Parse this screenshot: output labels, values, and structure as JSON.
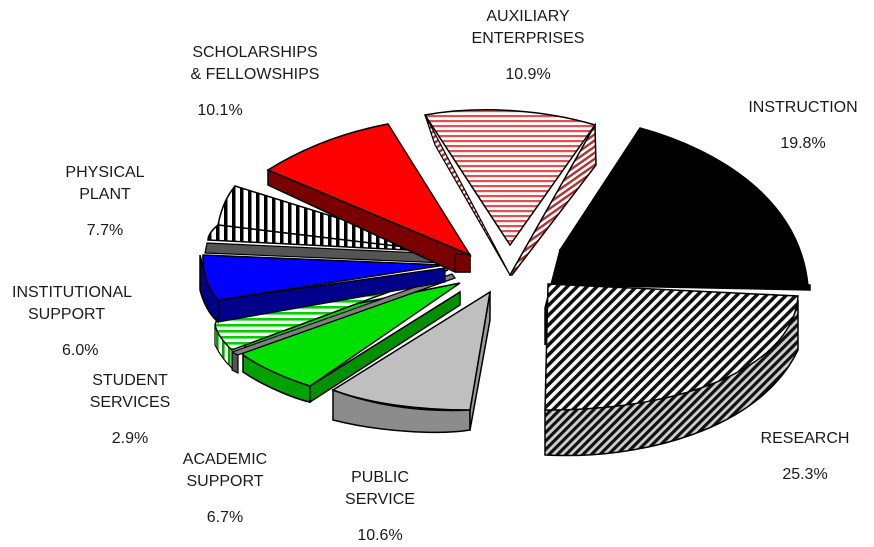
{
  "chart_data": {
    "type": "pie",
    "slices": [
      {
        "label_lines": [
          "INSTRUCTION"
        ],
        "pct_text": "19.8%",
        "value": 19.8,
        "color": "#000000",
        "side_color": "#000000",
        "pattern": "solid"
      },
      {
        "label_lines": [
          "RESEARCH"
        ],
        "pct_text": "25.3%",
        "value": 25.3,
        "color": "#ffffff",
        "side_color": "#ffffff",
        "pattern": "diag-dark"
      },
      {
        "label_lines": [
          "PUBLIC",
          "SERVICE"
        ],
        "pct_text": "10.6%",
        "value": 10.6,
        "color": "#bfbfbf",
        "side_color": "#8c8c8c",
        "pattern": "solid"
      },
      {
        "label_lines": [
          "ACADEMIC",
          "SUPPORT"
        ],
        "pct_text": "6.7%",
        "value": 6.7,
        "color": "#00e000",
        "side_color": "#00a000",
        "pattern": "solid"
      },
      {
        "label_lines": [
          "STUDENT",
          "SERVICES"
        ],
        "pct_text": "2.9%",
        "value": 2.9,
        "color": "#7f7f7f",
        "side_color": "#555555",
        "pattern": "solid"
      },
      {
        "label_lines": [
          "INSTITUTIONAL",
          "SUPPORT"
        ],
        "pct_text": "6.0%",
        "value": 6.0,
        "color": "#ffffff",
        "side_color": "#ffffff",
        "pattern": "green-hstripe"
      },
      {
        "label_lines": [
          "PHYSICAL",
          "PLANT"
        ],
        "pct_text": "7.7%",
        "value": 7.7,
        "color": "#0000ff",
        "side_color": "#00008b",
        "pattern": "solid"
      },
      {
        "label_lines": [
          "SCHOLARSHIPS",
          "& FELLOWSHIPS"
        ],
        "pct_text": "10.1%",
        "value": 10.1,
        "color": "#ffffff",
        "side_color": "#ffffff",
        "pattern": "vstripe"
      },
      {
        "label_lines": [
          "AUXILIARY",
          "ENTERPRISES"
        ],
        "pct_text": "10.9%",
        "value": 10.9,
        "color": "#ff0000",
        "side_color": "#7a0000",
        "pattern": "solid"
      }
    ],
    "extra_slices": [
      {
        "label": "",
        "value": 0,
        "color": "#ffffff",
        "pattern": "red-hstripe"
      }
    ],
    "legend": "none"
  }
}
